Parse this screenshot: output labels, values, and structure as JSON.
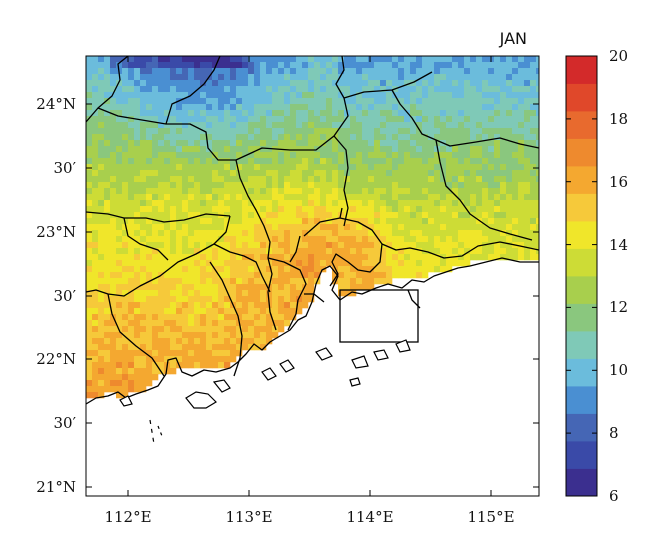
{
  "map": {
    "month": "JAN",
    "lon_ticks": [
      "112°E",
      "113°E",
      "114°E",
      "115°E"
    ],
    "lat_ticks": [
      "24°N",
      "30′",
      "23°N",
      "30′",
      "22°N",
      "30′",
      "21°N"
    ],
    "extent": {
      "lon": [
        111.7,
        115.5
      ],
      "lat": [
        20.9,
        24.75
      ]
    }
  },
  "colorbar": {
    "min": 6,
    "max": 20,
    "tick_labels": [
      "20",
      "18",
      "16",
      "14",
      "12",
      "10",
      "8",
      "6"
    ],
    "colors": [
      "#3b2f8f",
      "#3a4aa8",
      "#4566b5",
      "#4a8fd2",
      "#6bbcdc",
      "#7fc9b7",
      "#8ac77e",
      "#a8cf4d",
      "#cddc36",
      "#f0e62a",
      "#f6c93a",
      "#f4a830",
      "#ee8a2e",
      "#e86a2e",
      "#e0482a",
      "#d32a2a"
    ]
  },
  "colors": {
    "sea": "#ffffff",
    "border_line": "#000000"
  }
}
